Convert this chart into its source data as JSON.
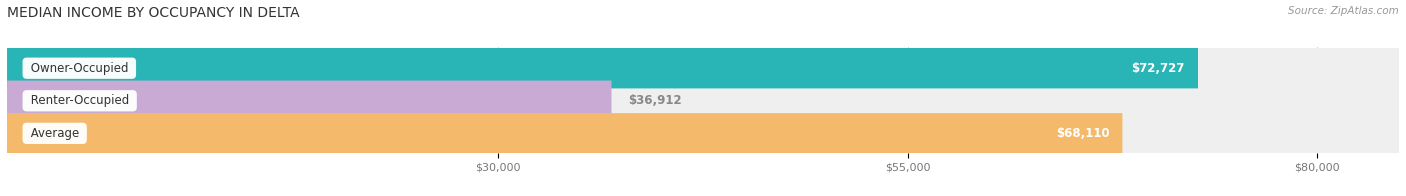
{
  "title": "MEDIAN INCOME BY OCCUPANCY IN DELTA",
  "source": "Source: ZipAtlas.com",
  "categories": [
    "Owner-Occupied",
    "Renter-Occupied",
    "Average"
  ],
  "values": [
    72727,
    36912,
    68110
  ],
  "labels": [
    "$72,727",
    "$36,912",
    "$68,110"
  ],
  "label_colors": [
    "white",
    "#888888",
    "white"
  ],
  "label_inside": [
    true,
    false,
    true
  ],
  "bar_colors": [
    "#29b5b5",
    "#c9aad4",
    "#f5b96b"
  ],
  "bar_bg_color": "#efefef",
  "xmin": 0,
  "xmax": 85000,
  "xticks": [
    30000,
    55000,
    80000
  ],
  "xtick_labels": [
    "$30,000",
    "$55,000",
    "$80,000"
  ],
  "figsize": [
    14.06,
    1.96
  ],
  "dpi": 100
}
